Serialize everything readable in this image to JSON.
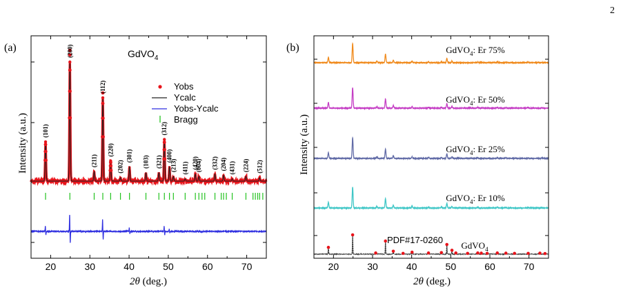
{
  "page_number": "2",
  "chart_data": [
    {
      "type": "line",
      "panel_label": "(a)",
      "title": "GdVO",
      "title_sub": "4",
      "xlabel_italic": "2θ",
      "xlabel_rest": " (deg.)",
      "ylabel": "Intensity (a.u.)",
      "xlim": [
        15,
        75
      ],
      "xticks": [
        "20",
        "30",
        "40",
        "50",
        "60",
        "70"
      ],
      "xtick_values": [
        20,
        30,
        40,
        50,
        60,
        70
      ],
      "legend_position": "top-right",
      "legend": [
        {
          "name": "Yobs",
          "color": "#e8141b",
          "marker": "dot"
        },
        {
          "name": "Ycalc",
          "color": "#222222",
          "marker": "line"
        },
        {
          "name": "Yobs-Ycalc",
          "color": "#2f2fe0",
          "marker": "line"
        },
        {
          "name": "Bragg",
          "color": "#22c21e",
          "marker": "bar"
        }
      ],
      "peaks": [
        {
          "x": 18.7,
          "h": 0.33,
          "label": "(101)"
        },
        {
          "x": 24.9,
          "h": 1.0,
          "label": "(200)"
        },
        {
          "x": 31.1,
          "h": 0.08,
          "label": "(211)"
        },
        {
          "x": 33.3,
          "h": 0.7,
          "label": "(112)"
        },
        {
          "x": 35.3,
          "h": 0.17,
          "label": "(220)"
        },
        {
          "x": 37.8,
          "h": 0.03,
          "label": "(202)"
        },
        {
          "x": 40.1,
          "h": 0.12,
          "label": "(301)"
        },
        {
          "x": 44.3,
          "h": 0.07,
          "label": "(103)"
        },
        {
          "x": 47.6,
          "h": 0.07,
          "label": "(321)"
        },
        {
          "x": 49.0,
          "h": 0.35,
          "label": "(312)"
        },
        {
          "x": 50.3,
          "h": 0.12,
          "label": "(400)"
        },
        {
          "x": 51.3,
          "h": 0.04,
          "label": "(213)"
        },
        {
          "x": 54.3,
          "h": 0.02,
          "label": "(411)"
        },
        {
          "x": 56.9,
          "h": 0.06,
          "label": "(420)"
        },
        {
          "x": 57.8,
          "h": 0.04,
          "label": "(004)"
        },
        {
          "x": 61.9,
          "h": 0.06,
          "label": "(332)"
        },
        {
          "x": 64.1,
          "h": 0.05,
          "label": "(204)"
        },
        {
          "x": 66.3,
          "h": 0.02,
          "label": "(431)"
        },
        {
          "x": 69.8,
          "h": 0.04,
          "label": "(224)"
        },
        {
          "x": 73.3,
          "h": 0.03,
          "label": "(512)"
        }
      ],
      "bragg_x": [
        18.7,
        24.9,
        31.1,
        33.3,
        35.3,
        37.8,
        40.1,
        44.3,
        47.6,
        49.0,
        50.3,
        51.3,
        54.3,
        56.9,
        57.8,
        58.6,
        59.3,
        61.9,
        63.5,
        64.1,
        64.8,
        66.3,
        69.8,
        71.6,
        72.2,
        72.8,
        73.3,
        74.1
      ],
      "diff_x": [
        18.7,
        24.9,
        33.3,
        40.1,
        49.0,
        50.3
      ],
      "diff_amp": [
        0.3,
        1.0,
        0.7,
        0.2,
        0.3,
        0.15
      ]
    },
    {
      "type": "line",
      "panel_label": "(b)",
      "xlabel_italic": "2θ",
      "xlabel_rest": "  (deg.)",
      "ylabel": "Intensity (a.u.)",
      "xlim": [
        15,
        75
      ],
      "xticks": [
        "20",
        "30",
        "40",
        "50",
        "60",
        "70"
      ],
      "xtick_values": [
        20,
        30,
        40,
        50,
        60,
        70
      ],
      "peaks_x": [
        18.7,
        24.9,
        31.1,
        33.3,
        35.3,
        40.1,
        44.3,
        47.6,
        49.0,
        50.3,
        56.9,
        61.9,
        64.1,
        69.8,
        73.3
      ],
      "peaks_h": [
        0.28,
        1.0,
        0.08,
        0.45,
        0.13,
        0.08,
        0.05,
        0.05,
        0.22,
        0.08,
        0.04,
        0.04,
        0.03,
        0.03,
        0.02
      ],
      "series": [
        {
          "name": "GdVO",
          "sub": "4",
          "suffix": ": Er 75%",
          "color": "#f08a1c"
        },
        {
          "name": "GdVO",
          "sub": "4",
          "suffix": ": Er 50%",
          "color": "#c43cc4"
        },
        {
          "name": "GdVO",
          "sub": "4",
          "suffix": ": Er 25%",
          "color": "#606aa6"
        },
        {
          "name": "GdVO",
          "sub": "4",
          "suffix": ": Er 10%",
          "color": "#3ec6c6"
        },
        {
          "name": "GdVO",
          "sub": "4",
          "suffix": "",
          "color": "#333333"
        }
      ],
      "reference_label": "PDF#17-0260",
      "reference_color": "#e8141b",
      "reference_peaks": [
        {
          "x": 18.7,
          "h": 0.35
        },
        {
          "x": 24.9,
          "h": 1.0
        },
        {
          "x": 30.8,
          "h": 0.06
        },
        {
          "x": 33.3,
          "h": 0.68
        },
        {
          "x": 35.3,
          "h": 0.15
        },
        {
          "x": 37.8,
          "h": 0.04
        },
        {
          "x": 40.1,
          "h": 0.1
        },
        {
          "x": 44.3,
          "h": 0.06
        },
        {
          "x": 47.6,
          "h": 0.08
        },
        {
          "x": 49.0,
          "h": 0.5
        },
        {
          "x": 50.3,
          "h": 0.2
        },
        {
          "x": 51.3,
          "h": 0.06
        },
        {
          "x": 54.3,
          "h": 0.04
        },
        {
          "x": 56.9,
          "h": 0.06
        },
        {
          "x": 57.8,
          "h": 0.05
        },
        {
          "x": 59.3,
          "h": 0.04
        },
        {
          "x": 61.9,
          "h": 0.06
        },
        {
          "x": 64.1,
          "h": 0.05
        },
        {
          "x": 66.3,
          "h": 0.04
        },
        {
          "x": 69.8,
          "h": 0.04
        },
        {
          "x": 72.8,
          "h": 0.05
        },
        {
          "x": 74.1,
          "h": 0.03
        }
      ]
    }
  ]
}
